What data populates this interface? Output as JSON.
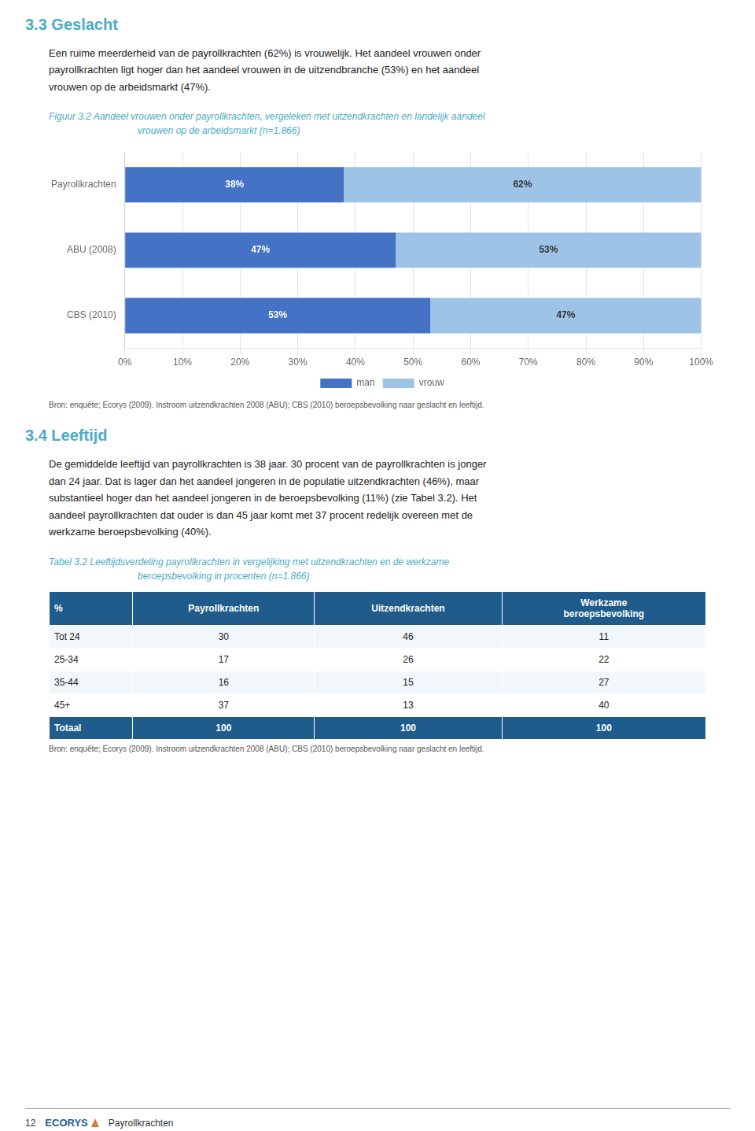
{
  "section_33": {
    "title": "3.3   Geslacht",
    "color": "#4bacc6",
    "text": "Een ruime meerderheid van de payrollkrachten (62%) is vrouwelijk. Het aandeel vrouwen onder\npayrollkrachten ligt hoger dan het aandeel vrouwen in de uitzendbranche (53%) en het aandeel\nvrouwen op de arbeidsmarkt (47%)."
  },
  "chart_data": {
    "type": "bar",
    "title": [
      "Figuur 3.2   Aandeel vrouwen onder payrollkrachten, vergeleken met uitzendkrachten en landelijk aandeel",
      "vrouwen op de arbeidsmarkt (n=1.866)"
    ],
    "title_color": "#4bacc6",
    "orientation": "horizontal",
    "stacked": true,
    "data_labels": true,
    "grid": true,
    "legend": "bottom",
    "categories": [
      "CBS (2010)",
      "ABU (2008)",
      "Payrollkrachten"
    ],
    "series": [
      {
        "name": "man",
        "color": "#4472c4",
        "values": [
          53,
          47,
          38
        ],
        "value_labels": [
          "53%",
          "47%",
          "38%"
        ]
      },
      {
        "name": "vrouw",
        "color": "#9dc3e6",
        "values": [
          47,
          53,
          62
        ],
        "value_labels": [
          "47%",
          "53%",
          "62%"
        ]
      }
    ],
    "xlim": [
      0,
      100
    ],
    "xticks": [
      {
        "value": 0,
        "label": "0%"
      },
      {
        "value": 10,
        "label": "10%"
      },
      {
        "value": 20,
        "label": "20%"
      },
      {
        "value": 30,
        "label": "30%"
      },
      {
        "value": 40,
        "label": "40%"
      },
      {
        "value": 50,
        "label": "50%"
      },
      {
        "value": 60,
        "label": "60%"
      },
      {
        "value": 70,
        "label": "70%"
      },
      {
        "value": 80,
        "label": "80%"
      },
      {
        "value": 90,
        "label": "90%"
      },
      {
        "value": 100,
        "label": "100%"
      }
    ],
    "source": "Bron: enquête; Ecorys (2009). Instroom uitzendkrachten 2008 (ABU); CBS (2010) beroepsbevolking naar geslacht en leeftijd."
  },
  "section_34": {
    "title": "3.4   Leeftijd",
    "color": "#4bacc6",
    "text": "De gemiddelde leeftijd van payrollkrachten is 38 jaar. 30 procent van de payrollkrachten is jonger\ndan 24 jaar. Dat is lager dan het aandeel jongeren in de populatie uitzendkrachten (46%), maar\nsubstantieel hoger dan het aandeel jongeren in de beroepsbevolking (11%) (zie Tabel 3.2). Het\naandeel payrollkrachten dat ouder is dan 45 jaar komt met 37 procent redelijk overeen met de\nwerkzame beroepsbevolking (40%)."
  },
  "table": {
    "title": [
      "Tabel 3.2   Leeftijdsverdeling payrollkrachten in vergelijking met uitzendkrachten en de werkzame",
      "beroepsbevolking in procenten (n=1.866)"
    ],
    "title_color": "#4bacc6",
    "header": [
      "%",
      "Payrollkrachten",
      "Uitzendkrachten",
      "Werkzame\nberoepsbevolking"
    ],
    "header_color": "#1f5c8b",
    "header_text_color": "#ffffff",
    "rows": [
      [
        "Tot 24",
        30,
        46,
        11
      ],
      [
        "25-34",
        17,
        26,
        22
      ],
      [
        "35-44",
        16,
        15,
        27
      ],
      [
        "45+",
        37,
        13,
        40
      ]
    ],
    "total": [
      "Totaal",
      100,
      100,
      100
    ],
    "total_color": "#1f5c8b",
    "total_text_color": "#ffffff",
    "source": "Bron: enquête; Ecorys (2009). Instroom uitzendkrachten 2008 (ABU); CBS (2010) beroepsbevolking naar geslacht en leeftijd."
  },
  "footer": {
    "page": "12",
    "logo": "ECORYS",
    "doc": "Payrollkrachten"
  }
}
